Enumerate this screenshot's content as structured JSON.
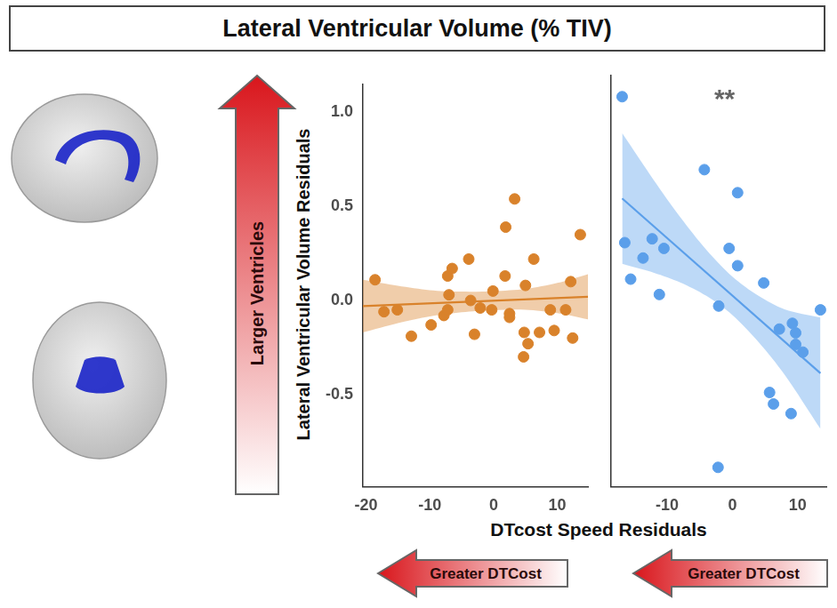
{
  "title": "Lateral Ventricular Volume (% TIV)",
  "y_label": "Lateral Ventricular Volume Residuals",
  "x_label": "DTcost Speed Residuals",
  "y_arrow_label": "Larger Ventricles",
  "x_arrow_label": "Greater DTCost",
  "chart_data": [
    {
      "type": "scatter",
      "color": "#d9822b",
      "grid": false,
      "tick_labels": true,
      "xlim": [
        -20.5,
        14.8
      ],
      "xticks": [
        -20,
        -10,
        0,
        10
      ],
      "ylim": [
        -0.99,
        1.15
      ],
      "yticks": [
        -0.5,
        {
          "value": 0,
          "label": "0.0"
        },
        0.5,
        {
          "value": 1,
          "label": "1.0"
        }
      ],
      "x": [
        -18.6,
        -17.2,
        -15.1,
        -12.9,
        -9.8,
        -7.8,
        -7.2,
        -6.5,
        -7.0,
        -7.2,
        -3.9,
        -3.6,
        -3.0,
        -2.1,
        -0.1,
        -0.3,
        1.9,
        1.8,
        2.5,
        2.5,
        3.3,
        5.0,
        4.8,
        4.7,
        5.4,
        6.3,
        7.2,
        8.9,
        9.5,
        11.3,
        12.1,
        12.4,
        13.6
      ],
      "y": [
        0.11,
        -0.06,
        -0.05,
        -0.19,
        -0.13,
        -0.08,
        0.13,
        0.17,
        0.03,
        -0.05,
        0.22,
        0.0,
        -0.18,
        -0.04,
        0.05,
        -0.05,
        0.39,
        0.13,
        -0.07,
        -0.09,
        0.54,
        0.08,
        -0.17,
        -0.3,
        -0.23,
        0.22,
        -0.17,
        -0.05,
        -0.16,
        -0.05,
        0.1,
        -0.2,
        0.35
      ],
      "fit_line": {
        "x": [
          -20.5,
          14.8
        ],
        "y": [
          -0.03,
          0.02
        ]
      },
      "confidence_band": {
        "x": [
          -20.5,
          -15,
          -10,
          -5,
          0,
          5,
          10,
          14.8
        ],
        "lower": [
          -0.17,
          -0.12,
          -0.085,
          -0.063,
          -0.051,
          -0.049,
          -0.067,
          -0.1
        ],
        "upper": [
          0.11,
          0.078,
          0.055,
          0.047,
          0.049,
          0.061,
          0.093,
          0.14
        ]
      }
    },
    {
      "type": "scatter",
      "color": "#5b9fea",
      "grid": false,
      "tick_labels": "x",
      "xlim": [
        -18.6,
        14.4
      ],
      "xticks": [
        -10,
        0,
        10
      ],
      "ylim": [
        -0.99,
        1.15
      ],
      "yticks": [
        -0.5,
        {
          "value": 0,
          "label": "0.0"
        },
        0.5,
        {
          "value": 1,
          "label": "1.0"
        }
      ],
      "x": [
        -16.9,
        -16.5,
        -15.6,
        -13.7,
        -12.3,
        -11.2,
        -10.5,
        -4.3,
        -2.1,
        -2.2,
        -0.5,
        0.8,
        0.8,
        4.8,
        5.7,
        6.3,
        7.2,
        9.0,
        9.2,
        9.7,
        9.7,
        10.8,
        13.5
      ],
      "y": [
        1.04,
        0.28,
        0.09,
        0.2,
        0.3,
        0.01,
        0.25,
        0.66,
        -0.05,
        -0.89,
        0.25,
        0.54,
        0.16,
        0.07,
        -0.5,
        -0.56,
        -0.17,
        -0.61,
        -0.14,
        -0.19,
        -0.25,
        -0.29,
        -0.07
      ],
      "fit_line": {
        "x": [
          -16.9,
          13.5
        ],
        "y": [
          0.51,
          -0.4
        ]
      },
      "confidence_band": {
        "x": [
          -16.9,
          -12,
          -8,
          -4,
          0,
          4,
          8,
          13.5
        ],
        "lower": [
          0.17,
          0.123,
          0.073,
          0.003,
          -0.097,
          -0.237,
          -0.407,
          -0.69
        ],
        "upper": [
          0.85,
          0.603,
          0.413,
          0.243,
          0.103,
          0.003,
          -0.067,
          -0.11
        ]
      },
      "annotation": {
        "text": "**",
        "x": -1.2,
        "y": 1.02
      }
    }
  ]
}
